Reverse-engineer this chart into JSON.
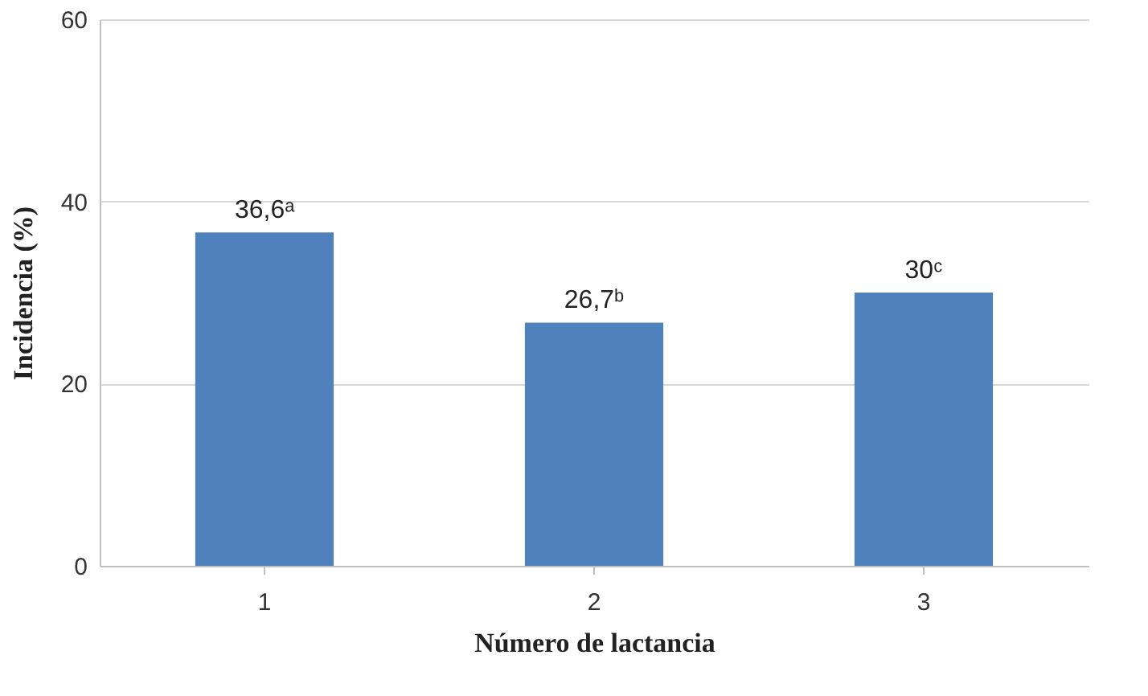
{
  "chart_data": {
    "type": "bar",
    "xlabel": "Número de lactancia",
    "ylabel": "Incidencia (%)",
    "categories": [
      "1",
      "2",
      "3"
    ],
    "values": [
      36.6,
      26.7,
      30
    ],
    "value_labels": [
      "36,6ᵃ",
      "26,7ᵇ",
      "30ᶜ"
    ],
    "color": "#4f81bd",
    "ylim": [
      0,
      60
    ],
    "yticks": [
      0,
      20,
      40,
      60
    ],
    "grid": "y"
  }
}
